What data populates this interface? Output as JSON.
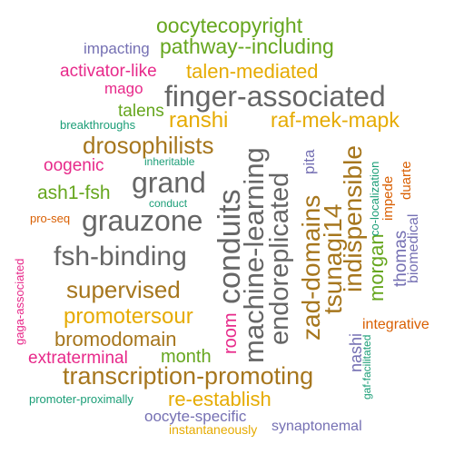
{
  "palette": {
    "green": "#66a61e",
    "teal": "#1b9e77",
    "orange": "#d95f02",
    "purple": "#7570b3",
    "magenta": "#e7298a",
    "gold": "#e6ab02",
    "brown": "#a6761d",
    "gray": "#666666"
  },
  "words": {
    "oocytecopyright": "oocytecopyright",
    "impacting": "impacting",
    "pathway_including": "pathway--including",
    "activator_like": "activator-like",
    "talen_mediated": "talen-mediated",
    "mago": "mago",
    "finger_associated": "finger-associated",
    "talens": "talens",
    "ranshi": "ranshi",
    "raf_mek_mapk": "raf-mek-mapk",
    "breakthroughs": "breakthroughs",
    "drosophilists": "drosophilists",
    "oogenic": "oogenic",
    "inheritable": "inheritable",
    "grand": "grand",
    "ash1_fsh": "ash1-fsh",
    "conduct": "conduct",
    "pro_seq": "pro-seq",
    "grauzone": "grauzone",
    "fsh_binding": "fsh-binding",
    "supervised": "supervised",
    "promotersour": "promotersour",
    "bromodomain": "bromodomain",
    "extraterminal": "extraterminal",
    "month": "month",
    "transcription_promoting": "transcription-promoting",
    "promoter_proximally": "promoter-proximally",
    "re_establish": "re-establish",
    "oocyte_specific": "oocyte-specific",
    "instantaneously": "instantaneously",
    "synaptonemal": "synaptonemal",
    "integrative": "integrative",
    "gaga_associated": "gaga-associated",
    "room": "room",
    "conduits": "conduits",
    "machine_learning": "machine-learning",
    "endoreplicated": "endoreplicated",
    "pita": "pita",
    "zad_domains": "zad-domains",
    "tsunagi14": "tsunagi14",
    "indispensible": "indispensible",
    "morgan": "morgan",
    "colocalization": "co-localization",
    "impede": "impede",
    "duarte": "duarte",
    "thomas": "thomas",
    "biomedical": "biomedical",
    "nashi": "nashi",
    "gaf_facilitated": "gaf-facilitated"
  }
}
